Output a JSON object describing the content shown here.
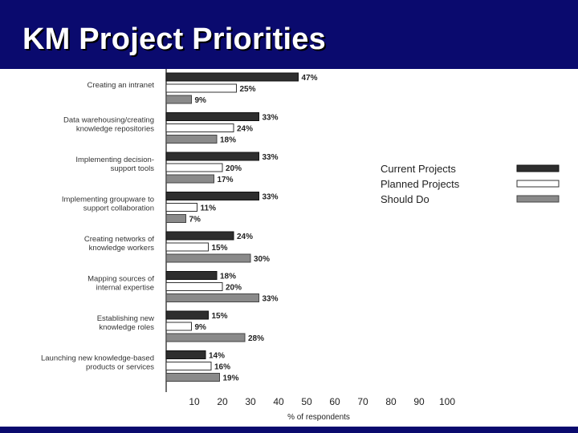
{
  "slide": {
    "title": "KM Project Priorities"
  },
  "colors": {
    "title_bar": "#0a0a6e",
    "current": "#2e2e2e",
    "planned": "#ffffff",
    "should": "#8a8a8a"
  },
  "chart_data": {
    "type": "bar",
    "orientation": "horizontal",
    "categories": [
      [
        "Creating an intranet"
      ],
      [
        "Data warehousing/creating",
        "knowledge repositories"
      ],
      [
        "Implementing decision-",
        "support tools"
      ],
      [
        "Implementing groupware to",
        "support collaboration"
      ],
      [
        "Creating networks of",
        "knowledge workers"
      ],
      [
        "Mapping sources of",
        "internal expertise"
      ],
      [
        "Establishing new",
        "knowledge roles"
      ],
      [
        "Launching new knowledge-based",
        "products or services"
      ]
    ],
    "series": [
      {
        "name": "Current Projects",
        "values": [
          47,
          33,
          33,
          33,
          24,
          18,
          15,
          14
        ]
      },
      {
        "name": "Planned Projects",
        "values": [
          25,
          24,
          20,
          11,
          15,
          20,
          9,
          16
        ]
      },
      {
        "name": "Should Do",
        "values": [
          9,
          18,
          17,
          7,
          30,
          33,
          28,
          19
        ]
      }
    ],
    "value_suffix": "%",
    "xlabel": "% of respondents",
    "xticks": [
      10,
      20,
      30,
      40,
      50,
      60,
      70,
      80,
      90,
      100
    ],
    "xlim": [
      0,
      100
    ],
    "legend_position": "right",
    "grid": false
  }
}
